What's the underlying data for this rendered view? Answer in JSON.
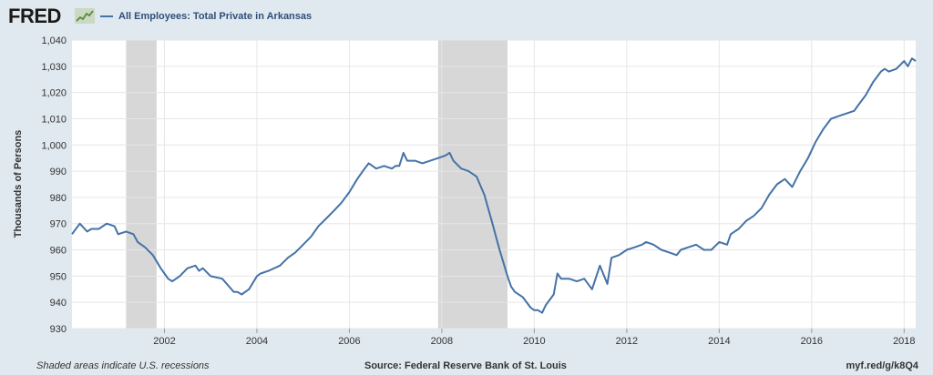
{
  "header": {
    "brand": "FRED",
    "legend_label": "All Employees: Total Private in Arkansas"
  },
  "footer": {
    "note": "Shaded areas indicate U.S. recessions",
    "source": "Source: Federal Reserve Bank of St. Louis",
    "link": "myf.red/g/k8Q4"
  },
  "colors": {
    "background": "#e1e9f0",
    "plot_area": "#ffffff",
    "line": "#4572a7",
    "recession": "#d7d7d7",
    "grid": "#e6e6e6"
  },
  "chart_data": {
    "type": "line",
    "title": "",
    "xlabel": "",
    "ylabel": "Thousands of Persons",
    "xlim": [
      2000.0,
      2018.25
    ],
    "ylim": [
      930,
      1040
    ],
    "yticks": [
      930,
      940,
      950,
      960,
      970,
      980,
      990,
      1000,
      1010,
      1020,
      1030,
      1040
    ],
    "ytick_labels": [
      "930",
      "940",
      "950",
      "960",
      "970",
      "980",
      "990",
      "1,000",
      "1,010",
      "1,020",
      "1,030",
      "1,040"
    ],
    "xticks": [
      2002,
      2004,
      2006,
      2008,
      2010,
      2012,
      2014,
      2016,
      2018
    ],
    "xtick_labels": [
      "2002",
      "2004",
      "2006",
      "2008",
      "2010",
      "2012",
      "2014",
      "2016",
      "2018"
    ],
    "grid": true,
    "recessions": [
      [
        2001.17,
        2001.83
      ],
      [
        2007.92,
        2009.42
      ]
    ],
    "series": [
      {
        "name": "All Employees: Total Private in Arkansas",
        "points": [
          [
            2000.0,
            966
          ],
          [
            2000.17,
            970
          ],
          [
            2000.33,
            967
          ],
          [
            2000.42,
            968
          ],
          [
            2000.58,
            968
          ],
          [
            2000.75,
            970
          ],
          [
            2000.92,
            969
          ],
          [
            2001.0,
            966
          ],
          [
            2001.17,
            967
          ],
          [
            2001.33,
            966
          ],
          [
            2001.42,
            963
          ],
          [
            2001.58,
            961
          ],
          [
            2001.75,
            958
          ],
          [
            2001.92,
            953
          ],
          [
            2002.0,
            951
          ],
          [
            2002.08,
            949
          ],
          [
            2002.17,
            948
          ],
          [
            2002.33,
            950
          ],
          [
            2002.5,
            953
          ],
          [
            2002.67,
            954
          ],
          [
            2002.75,
            952
          ],
          [
            2002.83,
            953
          ],
          [
            2003.0,
            950
          ],
          [
            2003.25,
            949
          ],
          [
            2003.5,
            944
          ],
          [
            2003.58,
            944
          ],
          [
            2003.67,
            943
          ],
          [
            2003.83,
            945
          ],
          [
            2004.0,
            950
          ],
          [
            2004.08,
            951
          ],
          [
            2004.25,
            952
          ],
          [
            2004.5,
            954
          ],
          [
            2004.67,
            957
          ],
          [
            2004.83,
            959
          ],
          [
            2005.0,
            962
          ],
          [
            2005.17,
            965
          ],
          [
            2005.33,
            969
          ],
          [
            2005.5,
            972
          ],
          [
            2005.67,
            975
          ],
          [
            2005.83,
            978
          ],
          [
            2006.0,
            982
          ],
          [
            2006.17,
            987
          ],
          [
            2006.33,
            991
          ],
          [
            2006.42,
            993
          ],
          [
            2006.58,
            991
          ],
          [
            2006.75,
            992
          ],
          [
            2006.92,
            991
          ],
          [
            2007.0,
            992
          ],
          [
            2007.08,
            992
          ],
          [
            2007.17,
            997
          ],
          [
            2007.25,
            994
          ],
          [
            2007.42,
            994
          ],
          [
            2007.58,
            993
          ],
          [
            2007.75,
            994
          ],
          [
            2007.92,
            995
          ],
          [
            2008.08,
            996
          ],
          [
            2008.17,
            997
          ],
          [
            2008.25,
            994
          ],
          [
            2008.42,
            991
          ],
          [
            2008.58,
            990
          ],
          [
            2008.75,
            988
          ],
          [
            2008.92,
            981
          ],
          [
            2009.08,
            971
          ],
          [
            2009.25,
            960
          ],
          [
            2009.42,
            950
          ],
          [
            2009.5,
            946
          ],
          [
            2009.58,
            944
          ],
          [
            2009.75,
            942
          ],
          [
            2009.92,
            938
          ],
          [
            2010.0,
            937
          ],
          [
            2010.08,
            937
          ],
          [
            2010.17,
            936
          ],
          [
            2010.25,
            939
          ],
          [
            2010.42,
            943
          ],
          [
            2010.5,
            951
          ],
          [
            2010.58,
            949
          ],
          [
            2010.75,
            949
          ],
          [
            2010.92,
            948
          ],
          [
            2011.08,
            949
          ],
          [
            2011.25,
            945
          ],
          [
            2011.42,
            954
          ],
          [
            2011.58,
            947
          ],
          [
            2011.67,
            957
          ],
          [
            2011.83,
            958
          ],
          [
            2012.0,
            960
          ],
          [
            2012.17,
            961
          ],
          [
            2012.33,
            962
          ],
          [
            2012.42,
            963
          ],
          [
            2012.58,
            962
          ],
          [
            2012.75,
            960
          ],
          [
            2012.92,
            959
          ],
          [
            2013.08,
            958
          ],
          [
            2013.17,
            960
          ],
          [
            2013.33,
            961
          ],
          [
            2013.5,
            962
          ],
          [
            2013.67,
            960
          ],
          [
            2013.83,
            960
          ],
          [
            2014.0,
            963
          ],
          [
            2014.17,
            962
          ],
          [
            2014.25,
            966
          ],
          [
            2014.42,
            968
          ],
          [
            2014.58,
            971
          ],
          [
            2014.75,
            973
          ],
          [
            2014.92,
            976
          ],
          [
            2015.08,
            981
          ],
          [
            2015.25,
            985
          ],
          [
            2015.42,
            987
          ],
          [
            2015.58,
            984
          ],
          [
            2015.75,
            990
          ],
          [
            2015.92,
            995
          ],
          [
            2016.08,
            1001
          ],
          [
            2016.25,
            1006
          ],
          [
            2016.42,
            1010
          ],
          [
            2016.58,
            1011
          ],
          [
            2016.75,
            1012
          ],
          [
            2016.92,
            1013
          ],
          [
            2017.0,
            1015
          ],
          [
            2017.17,
            1019
          ],
          [
            2017.33,
            1024
          ],
          [
            2017.5,
            1028
          ],
          [
            2017.58,
            1029
          ],
          [
            2017.67,
            1028
          ],
          [
            2017.83,
            1029
          ],
          [
            2018.0,
            1032
          ],
          [
            2018.08,
            1030
          ],
          [
            2018.17,
            1033
          ],
          [
            2018.25,
            1032
          ]
        ]
      }
    ]
  }
}
